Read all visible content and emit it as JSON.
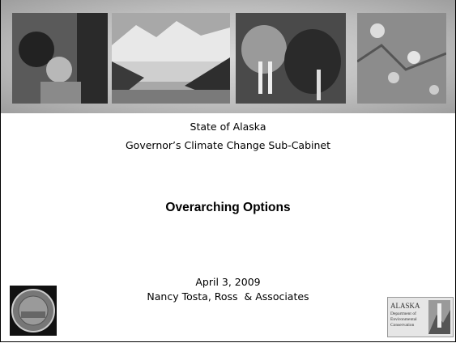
{
  "slide": {
    "organization": "State of Alaska",
    "group": "Governor’s Climate Change Sub-Cabinet",
    "title": "Overarching Options",
    "date": "April 3, 2009",
    "presenter": "Nancy Tosta, Ross  & Associates",
    "logo": {
      "lines": [
        "ALASKA",
        "Department of",
        "Environmental",
        "Conservation"
      ]
    }
  }
}
